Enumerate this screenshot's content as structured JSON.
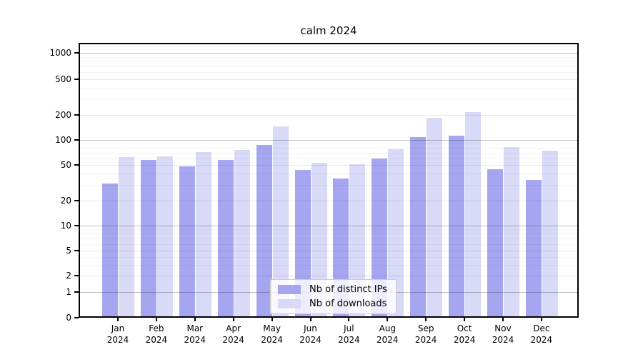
{
  "chart": {
    "title": "calm 2024"
  },
  "chart_data": {
    "type": "bar",
    "title": "calm 2024",
    "scale": "symlog",
    "grid": true,
    "legend_position": "lower center",
    "categories": [
      "Jan 2024",
      "Feb 2024",
      "Mar 2024",
      "Apr 2024",
      "May 2024",
      "Jun 2024",
      "Jul 2024",
      "Aug 2024",
      "Sep 2024",
      "Oct 2024",
      "Nov 2024",
      "Dec 2024"
    ],
    "series": [
      {
        "name": "Nb of distinct IPs",
        "color": "#a6a6f0",
        "values": [
          31,
          58,
          48,
          58,
          87,
          44,
          35,
          60,
          108,
          112,
          45,
          34
        ]
      },
      {
        "name": "Nb of downloads",
        "color": "#d9d9f8",
        "values": [
          62,
          64,
          71,
          76,
          145,
          53,
          51,
          78,
          185,
          215,
          82,
          75
        ]
      }
    ],
    "yticks": [
      0,
      1,
      2,
      5,
      10,
      20,
      50,
      100,
      200,
      500,
      1000
    ],
    "ylim": [
      0,
      1000
    ],
    "xlabel": "",
    "ylabel": ""
  }
}
